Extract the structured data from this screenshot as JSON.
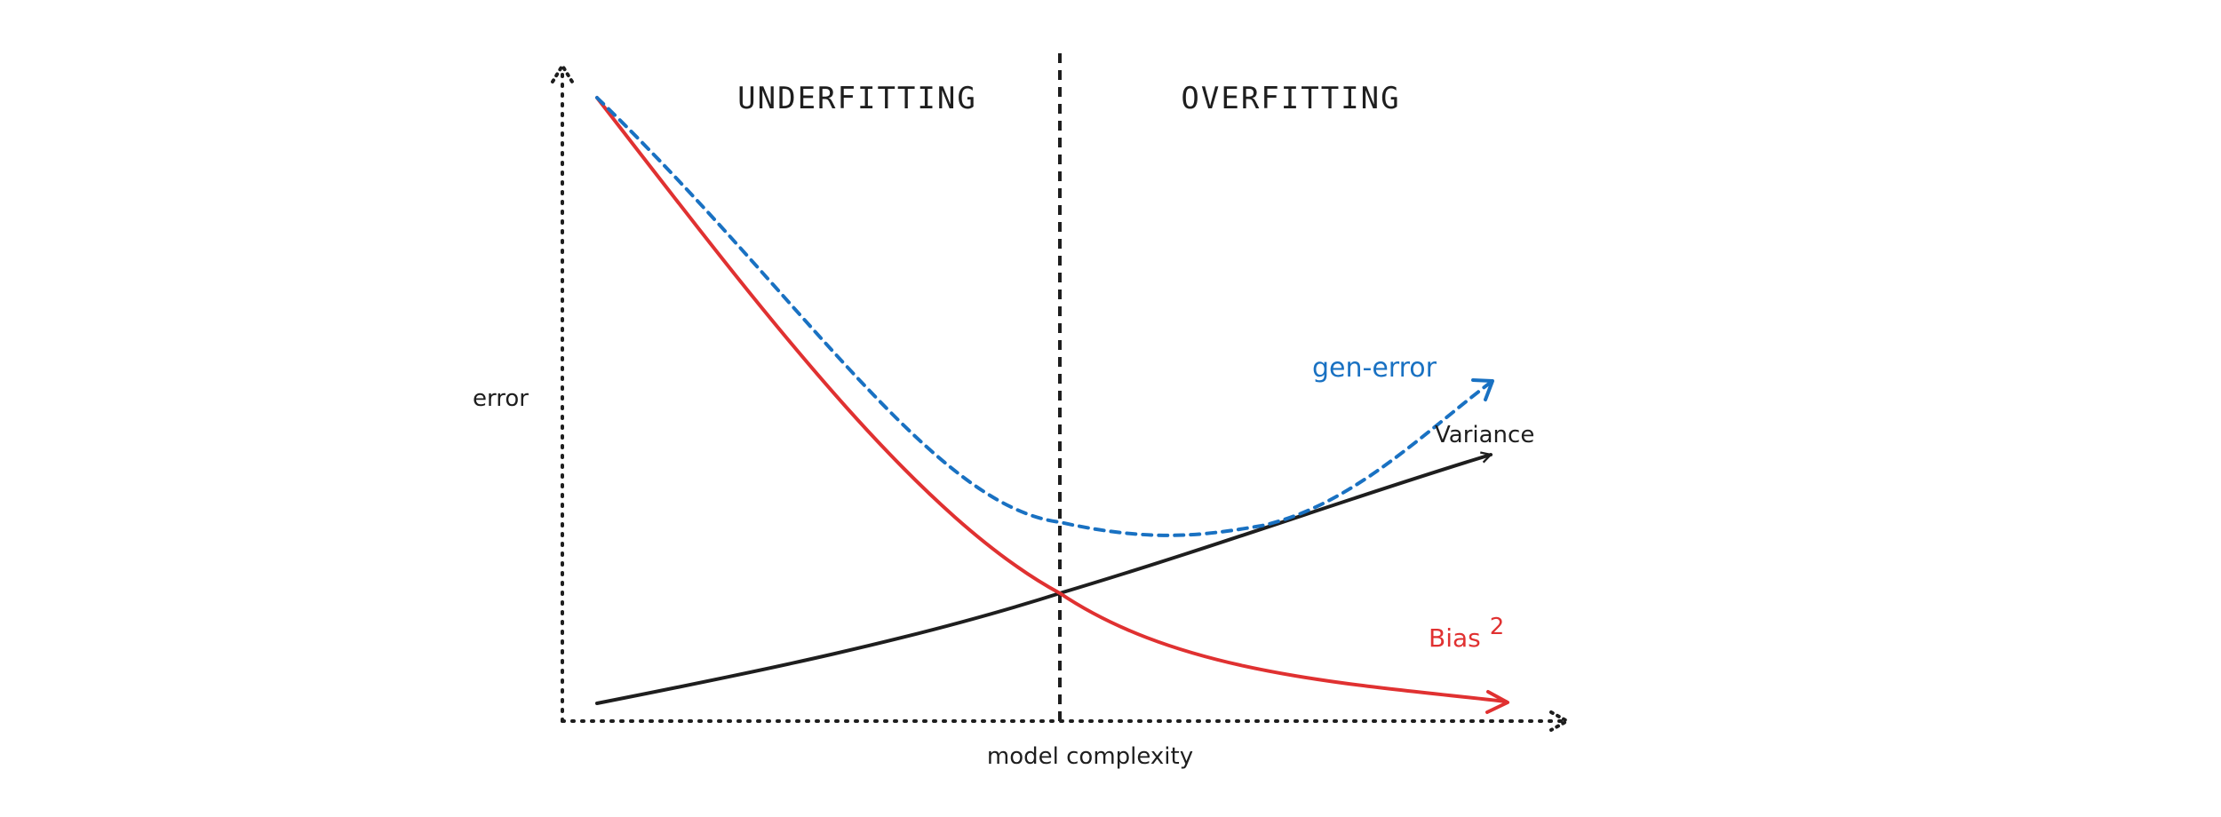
{
  "regions": {
    "underfitting": "UNDERFITTING",
    "overfitting": "OVERFITTING"
  },
  "axes": {
    "y_label": "error",
    "x_label": "model complexity"
  },
  "series": {
    "gen_error": {
      "label": "gen-error",
      "color": "#1971c2"
    },
    "variance": {
      "label": "Variance",
      "color": "#1e1e1e"
    },
    "bias": {
      "label": "Bias",
      "superscript": "2",
      "color": "#e03131"
    }
  }
}
